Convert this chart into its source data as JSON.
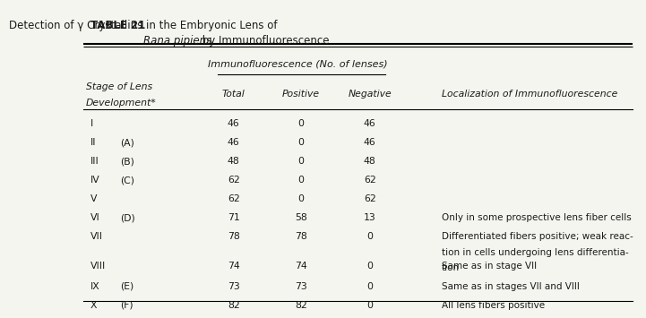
{
  "title_left": "TABLE 21",
  "title_right": "Detection of γ Crystallins in the Embryonic Lens of",
  "title_right_italic": "Rana pipiens",
  "title_line2": "by Immunofluorescence",
  "subheader": "Immunofluorescence (No. of lenses)",
  "col_headers": [
    "Total",
    "Positive",
    "Negative",
    "Localization of Immunofluorescence"
  ],
  "row_header": "Stage of Lens\nDevelopment*",
  "rows": [
    {
      "stage": "I",
      "sub": "",
      "total": "46",
      "positive": "0",
      "negative": "46",
      "note": ""
    },
    {
      "stage": "II",
      "sub": "(A)",
      "total": "46",
      "positive": "0",
      "negative": "46",
      "note": ""
    },
    {
      "stage": "III",
      "sub": "(B)",
      "total": "48",
      "positive": "0",
      "negative": "48",
      "note": ""
    },
    {
      "stage": "IV",
      "sub": "(C)",
      "total": "62",
      "positive": "0",
      "negative": "62",
      "note": ""
    },
    {
      "stage": "V",
      "sub": "",
      "total": "62",
      "positive": "0",
      "negative": "62",
      "note": ""
    },
    {
      "stage": "VI",
      "sub": "(D)",
      "total": "71",
      "positive": "58",
      "negative": "13",
      "note": "Only in some prospective lens fiber cells"
    },
    {
      "stage": "VII",
      "sub": "",
      "total": "78",
      "positive": "78",
      "negative": "0",
      "note": "Differentiated fibers positive; weak reac-\n    tion in cells undergoing lens differentia-\n    tion"
    },
    {
      "stage": "VIII",
      "sub": "",
      "total": "74",
      "positive": "74",
      "negative": "0",
      "note": "Same as in stage VII"
    },
    {
      "stage": "IX",
      "sub": "(E)",
      "total": "73",
      "positive": "73",
      "negative": "0",
      "note": "Same as in stages VII and VIII"
    },
    {
      "stage": "X",
      "sub": "(F)",
      "total": "82",
      "positive": "82",
      "negative": "0",
      "note": "All lens fibers positive"
    }
  ],
  "bg_color": "#f5f5f0",
  "text_color": "#1a1a1a"
}
